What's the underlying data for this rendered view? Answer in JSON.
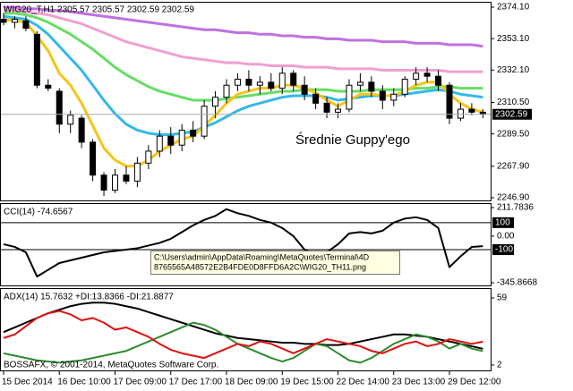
{
  "chart_data": [
    {
      "type": "candlestick",
      "title": "WIG20_T,H1  2305.57 2305.57 2302.59 2302.59",
      "annotation": "Średnie Guppy'ego",
      "categories": [
        "15 Dec 2014",
        null,
        null,
        null,
        null,
        "16 Dec 10:00",
        null,
        null,
        null,
        null,
        "17 Dec 09:00",
        null,
        null,
        null,
        null,
        "17 Dec 17:00",
        null,
        null,
        null,
        null,
        "18 Dec 09:00",
        null,
        null,
        null,
        null,
        "19 Dec 15:00",
        null,
        null,
        null,
        null,
        "22 Dec 14:00",
        null,
        null,
        null,
        null,
        "23 Dec 13:00",
        null,
        null,
        null,
        null,
        "29 Dec 12:00",
        null,
        null,
        null
      ],
      "open": [
        2366,
        2364,
        2365,
        2356,
        2322,
        2318,
        2296,
        2300,
        2284,
        2262,
        2252,
        2262,
        2258,
        2270,
        2278,
        2288,
        2282,
        2292,
        2288,
        2308,
        2314,
        2322,
        2326,
        2322,
        2324,
        2320,
        2330,
        2322,
        2316,
        2310,
        2304,
        2306,
        2322,
        2324,
        2318,
        2312,
        2316,
        2326,
        2330,
        2328,
        2322,
        2300,
        2306,
        2304
      ],
      "high": [
        2370,
        2368,
        2368,
        2358,
        2326,
        2320,
        2305,
        2302,
        2286,
        2264,
        2266,
        2268,
        2274,
        2282,
        2292,
        2294,
        2296,
        2298,
        2312,
        2318,
        2326,
        2330,
        2332,
        2328,
        2330,
        2334,
        2332,
        2328,
        2320,
        2314,
        2310,
        2326,
        2330,
        2328,
        2322,
        2320,
        2328,
        2334,
        2334,
        2332,
        2324,
        2310,
        2310,
        2306
      ],
      "low": [
        2362,
        2360,
        2358,
        2320,
        2318,
        2290,
        2290,
        2280,
        2258,
        2248,
        2250,
        2256,
        2254,
        2266,
        2274,
        2276,
        2278,
        2284,
        2286,
        2300,
        2310,
        2318,
        2318,
        2316,
        2318,
        2316,
        2318,
        2312,
        2306,
        2300,
        2300,
        2304,
        2318,
        2314,
        2306,
        2308,
        2314,
        2322,
        2324,
        2318,
        2296,
        2298,
        2302,
        2300
      ],
      "close": [
        2364,
        2366,
        2360,
        2322,
        2320,
        2296,
        2302,
        2284,
        2262,
        2252,
        2262,
        2258,
        2270,
        2278,
        2288,
        2282,
        2292,
        2288,
        2308,
        2314,
        2322,
        2326,
        2322,
        2324,
        2320,
        2330,
        2322,
        2316,
        2310,
        2304,
        2306,
        2322,
        2324,
        2318,
        2312,
        2316,
        2326,
        2330,
        2328,
        2322,
        2300,
        2306,
        2304,
        2302.59
      ],
      "series": [
        {
          "color": "#c070e0",
          "values": [
            2374,
            2374,
            2373,
            2373,
            2372,
            2372,
            2371,
            2370,
            2369,
            2368,
            2367,
            2366,
            2365,
            2364,
            2363,
            2362,
            2361,
            2360,
            2359,
            2359,
            2358,
            2357,
            2357,
            2356,
            2356,
            2355,
            2355,
            2354,
            2354,
            2353,
            2353,
            2352,
            2352,
            2352,
            2351,
            2351,
            2351,
            2350,
            2350,
            2350,
            2349,
            2349,
            2349,
            2348
          ]
        },
        {
          "color": "#f0a0d0",
          "values": [
            2372,
            2372,
            2371,
            2370,
            2369,
            2367,
            2365,
            2363,
            2360,
            2357,
            2354,
            2351,
            2349,
            2347,
            2345,
            2343,
            2341,
            2340,
            2339,
            2338,
            2337,
            2337,
            2336,
            2336,
            2335,
            2335,
            2335,
            2334,
            2334,
            2334,
            2333,
            2333,
            2333,
            2333,
            2332,
            2332,
            2332,
            2332,
            2332,
            2332,
            2331,
            2331,
            2331,
            2331
          ]
        },
        {
          "color": "#66dd66",
          "values": [
            2370,
            2370,
            2369,
            2367,
            2364,
            2360,
            2356,
            2351,
            2346,
            2340,
            2334,
            2329,
            2325,
            2321,
            2318,
            2316,
            2314,
            2312,
            2312,
            2312,
            2313,
            2314,
            2315,
            2316,
            2317,
            2318,
            2318,
            2319,
            2319,
            2319,
            2318,
            2318,
            2318,
            2319,
            2319,
            2319,
            2319,
            2320,
            2320,
            2321,
            2321,
            2320,
            2320,
            2320
          ]
        },
        {
          "color": "#33b8e8",
          "values": [
            2368,
            2367,
            2366,
            2362,
            2356,
            2348,
            2340,
            2332,
            2322,
            2312,
            2303,
            2296,
            2292,
            2290,
            2289,
            2289,
            2290,
            2291,
            2294,
            2297,
            2301,
            2305,
            2308,
            2310,
            2312,
            2314,
            2315,
            2315,
            2315,
            2314,
            2312,
            2313,
            2314,
            2315,
            2315,
            2315,
            2316,
            2317,
            2318,
            2319,
            2318,
            2316,
            2315,
            2314
          ]
        },
        {
          "color": "#f5c518",
          "values": [
            2366,
            2365,
            2364,
            2355,
            2345,
            2330,
            2322,
            2310,
            2295,
            2280,
            2272,
            2268,
            2268,
            2272,
            2278,
            2282,
            2286,
            2288,
            2295,
            2302,
            2310,
            2316,
            2318,
            2320,
            2320,
            2322,
            2322,
            2320,
            2317,
            2312,
            2308,
            2312,
            2316,
            2316,
            2315,
            2315,
            2318,
            2322,
            2324,
            2324,
            2316,
            2310,
            2306,
            2304
          ]
        }
      ],
      "ylim": [
        2246.9,
        2374.1
      ],
      "yticks": [
        {
          "value": 2374.1,
          "label": "2374.10"
        },
        {
          "value": 2353.1,
          "label": "2353.10"
        },
        {
          "value": 2332.1,
          "label": "2332.10"
        },
        {
          "value": 2310.5,
          "label": "2310.50"
        },
        {
          "value": 2289.5,
          "label": "2289.50"
        },
        {
          "value": 2267.9,
          "label": "2267.90"
        },
        {
          "value": 2246.9,
          "label": "2246.90"
        }
      ]
    },
    {
      "type": "line",
      "title": "CCI(14) -74.6567",
      "series": [
        {
          "color": "#000000",
          "values": [
            -60,
            -80,
            -120,
            -300,
            -250,
            -200,
            -180,
            -160,
            -140,
            -120,
            -110,
            -100,
            -90,
            -70,
            -50,
            -20,
            30,
            80,
            120,
            150,
            200,
            170,
            150,
            120,
            100,
            60,
            0,
            -100,
            -140,
            -120,
            -60,
            20,
            30,
            20,
            40,
            100,
            130,
            140,
            120,
            60,
            -230,
            -150,
            -80,
            -74.6567
          ]
        }
      ],
      "ylim": [
        -345.8668,
        211.7836
      ],
      "yticks": [
        211.7836,
        {
          "value": 0,
          "label": "0.00"
        },
        -345.8668
      ],
      "levels": [
        100,
        -100
      ]
    },
    {
      "type": "line",
      "title": "ADX(14) 15.7632 +DI:13.8366 -DI:21.8877",
      "series": [
        {
          "color": "#000000",
          "values": [
            30,
            34,
            38,
            42,
            46,
            49,
            52,
            54,
            55,
            55,
            54,
            52,
            50,
            47,
            44,
            41,
            38,
            35,
            32,
            29,
            27,
            25,
            24,
            23,
            22,
            21,
            21,
            20,
            20,
            19,
            19,
            20,
            22,
            24,
            26,
            28,
            28,
            27,
            26,
            24,
            22,
            20,
            18,
            15.7632
          ]
        },
        {
          "color": "#2e8b2e",
          "values": [
            12,
            10,
            8,
            6,
            5,
            4,
            5,
            6,
            8,
            10,
            12,
            14,
            18,
            22,
            26,
            30,
            34,
            38,
            36,
            32,
            26,
            20,
            16,
            12,
            8,
            5,
            8,
            14,
            20,
            18,
            12,
            6,
            4,
            8,
            14,
            20,
            24,
            28,
            26,
            22,
            16,
            20,
            16,
            13.8366
          ]
        },
        {
          "color": "#e01010",
          "values": [
            25,
            28,
            35,
            42,
            46,
            48,
            45,
            40,
            42,
            38,
            32,
            34,
            30,
            26,
            20,
            15,
            12,
            10,
            8,
            12,
            16,
            20,
            18,
            22,
            20,
            16,
            12,
            16,
            20,
            24,
            22,
            20,
            18,
            14,
            12,
            16,
            20,
            22,
            18,
            20,
            24,
            22,
            20,
            21.8877
          ]
        }
      ],
      "ylim": [
        2,
        59
      ],
      "yticks": [
        59,
        2
      ]
    }
  ],
  "tooltip": [
    "C:\\Users\\admin\\AppData\\Roaming\\MetaQuotes\\Terminal\\4D",
    "8765565A48572E2B4FDE0D8FFD6A2C\\WIG20_TH11.png"
  ],
  "watermark": "BOSSAFX, © 2001-2014, MetaQuotes Software Corp."
}
